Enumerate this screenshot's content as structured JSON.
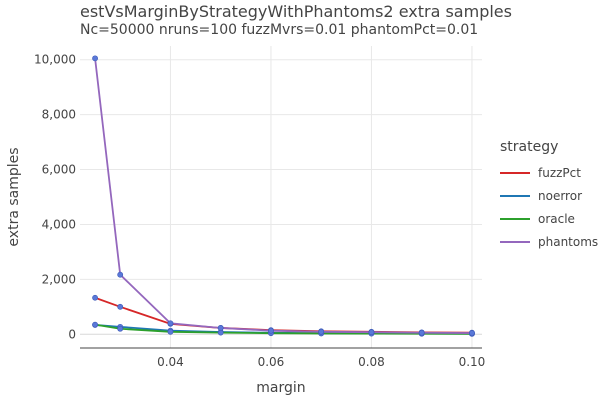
{
  "chart_data": {
    "type": "line",
    "title": "estVsMarginByStrategyWithPhantoms2 extra samples",
    "subtitle": "Nc=50000 nruns=100 fuzzMvrs=0.01 phantomPct=0.01",
    "xlabel": "margin",
    "ylabel": "extra samples",
    "xlim": [
      0.022,
      0.102
    ],
    "ylim": [
      -500,
      10500
    ],
    "xticks": [
      0.04,
      0.06,
      0.08,
      0.1
    ],
    "xtick_labels": [
      "0.04",
      "0.06",
      "0.08",
      "0.10"
    ],
    "yticks": [
      0,
      2000,
      4000,
      6000,
      8000,
      10000
    ],
    "ytick_labels": [
      "0",
      "2,000",
      "4,000",
      "6,000",
      "8,000",
      "10,000"
    ],
    "grid": true,
    "legend_title": "strategy",
    "legend_position": "right",
    "marker_color": "#5a78d8",
    "x": [
      0.025,
      0.03,
      0.04,
      0.05,
      0.06,
      0.07,
      0.08,
      0.09,
      0.1
    ],
    "series": [
      {
        "name": "fuzzPct",
        "color": "#d62728",
        "values": [
          1330,
          1000,
          380,
          230,
          150,
          110,
          90,
          70,
          60
        ]
      },
      {
        "name": "noerror",
        "color": "#1f77b4",
        "values": [
          340,
          270,
          130,
          80,
          55,
          40,
          35,
          25,
          20
        ]
      },
      {
        "name": "oracle",
        "color": "#2ca02c",
        "values": [
          350,
          200,
          90,
          60,
          40,
          30,
          25,
          20,
          15
        ]
      },
      {
        "name": "phantoms",
        "color": "#9467bd",
        "values": [
          10050,
          2170,
          400,
          230,
          130,
          90,
          75,
          55,
          45
        ]
      }
    ]
  }
}
